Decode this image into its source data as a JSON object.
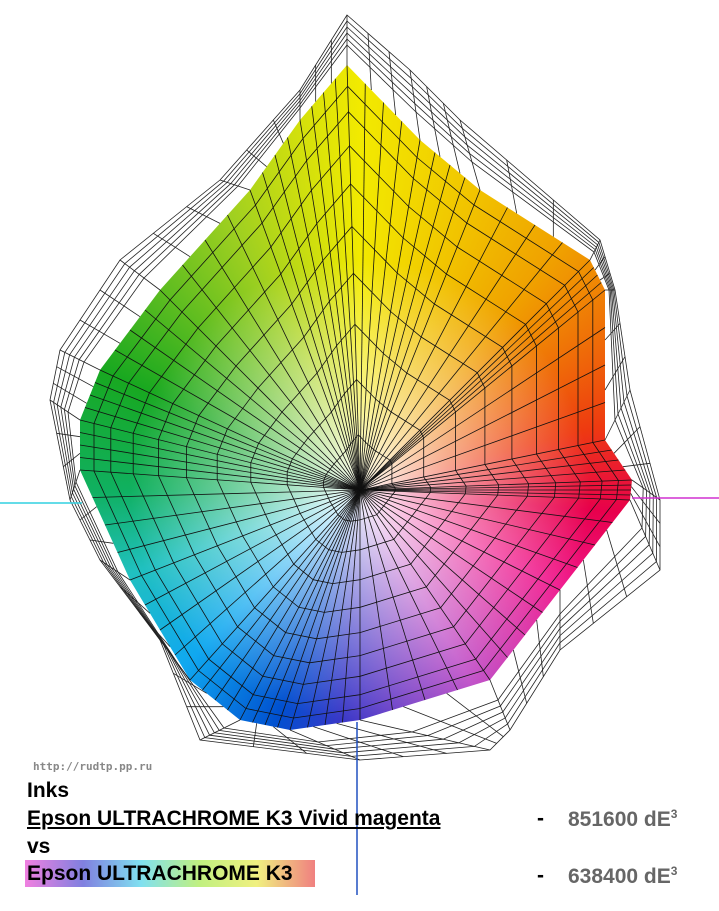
{
  "watermark": "http://rudtp.pp.ru",
  "heading": "Inks",
  "separator": "vs",
  "items": [
    {
      "name": "Epson ULTRACHROME K3 Vivid magenta",
      "dash": "-",
      "value": "851600 dE",
      "exponent": "3"
    },
    {
      "name": "Epson ULTRACHROME K3",
      "dash": "-",
      "value": "638400 dE",
      "exponent": "3"
    }
  ]
}
